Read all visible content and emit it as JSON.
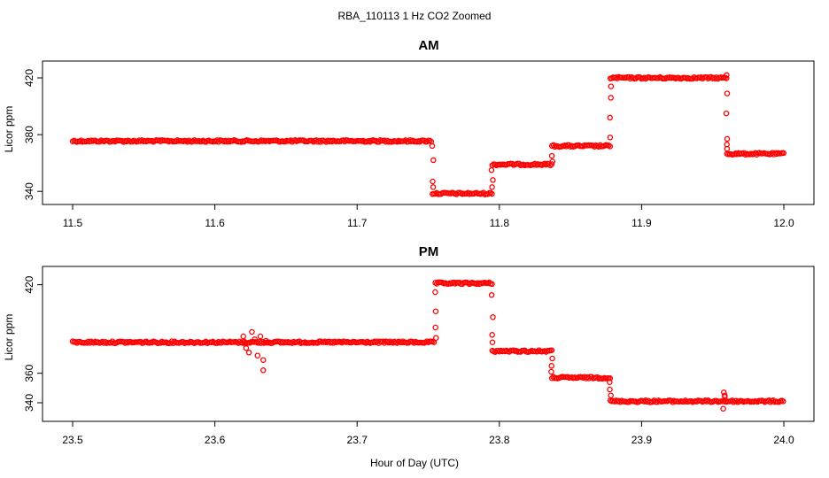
{
  "figure": {
    "title": "RBA_110113  1 Hz CO2 Zoomed",
    "xlabel": "Hour of Day (UTC)",
    "ylabel": "Licor ppm",
    "point_color": "#ff0000"
  },
  "chart_data": [
    {
      "type": "scatter",
      "title": "AM",
      "xlabel": "Hour of Day (UTC)",
      "ylabel": "Licor ppm",
      "xlim": [
        11.5,
        12.0
      ],
      "ylim": [
        337,
        425
      ],
      "xticks": [
        11.5,
        11.6,
        11.7,
        11.8,
        11.9,
        12.0
      ],
      "xtick_labels": [
        "11.5",
        "11.6",
        "11.7",
        "11.8",
        "11.9",
        "12.0"
      ],
      "yticks": [
        340,
        380,
        420
      ],
      "ytick_labels": [
        "340",
        "380",
        "420"
      ],
      "segments": [
        {
          "x_start": 11.5,
          "x_end": 11.753,
          "level": 375.5
        },
        {
          "x_start": 11.753,
          "x_end": 11.795,
          "level": 338.5
        },
        {
          "x_start": 11.795,
          "x_end": 11.837,
          "level": 359
        },
        {
          "x_start": 11.837,
          "x_end": 11.878,
          "level": 372
        },
        {
          "x_start": 11.878,
          "x_end": 11.96,
          "level": 420
        },
        {
          "x_start": 11.96,
          "x_end": 12.0,
          "level": 366.5
        }
      ],
      "transitions": [
        {
          "x": 11.753,
          "values": [
            372,
            362,
            347,
            343
          ]
        },
        {
          "x": 11.795,
          "values": [
            343,
            348,
            355
          ]
        },
        {
          "x": 11.837,
          "values": [
            361,
            365
          ]
        },
        {
          "x": 11.878,
          "values": [
            378,
            392,
            406,
            414
          ]
        },
        {
          "x": 11.96,
          "values": [
            422,
            409,
            395,
            377,
            373,
            370
          ]
        }
      ],
      "outliers": []
    },
    {
      "type": "scatter",
      "title": "PM",
      "xlabel": "Hour of Day (UTC)",
      "ylabel": "Licor ppm",
      "xlim": [
        23.5,
        24.0
      ],
      "ylim": [
        334,
        427
      ],
      "xticks": [
        23.5,
        23.6,
        23.7,
        23.8,
        23.9,
        24.0
      ],
      "xtick_labels": [
        "23.5",
        "23.6",
        "23.7",
        "23.8",
        "23.9",
        "24.0"
      ],
      "yticks": [
        340,
        360,
        420
      ],
      "ytick_labels": [
        "340",
        "360",
        "420"
      ],
      "segments": [
        {
          "x_start": 23.5,
          "x_end": 23.755,
          "level": 381
        },
        {
          "x_start": 23.755,
          "x_end": 23.795,
          "level": 421
        },
        {
          "x_start": 23.795,
          "x_end": 23.837,
          "level": 375
        },
        {
          "x_start": 23.837,
          "x_end": 23.878,
          "level": 357
        },
        {
          "x_start": 23.878,
          "x_end": 24.0,
          "level": 341
        }
      ],
      "transitions": [
        {
          "x": 23.755,
          "values": [
            384,
            391,
            402,
            415
          ]
        },
        {
          "x": 23.795,
          "values": [
            413,
            398,
            386,
            381
          ]
        },
        {
          "x": 23.837,
          "values": [
            370,
            365,
            361
          ]
        },
        {
          "x": 23.878,
          "values": [
            354,
            349,
            345
          ]
        },
        {
          "x": 23.958,
          "values": [
            347,
            345,
            336,
            344
          ]
        }
      ],
      "outliers": [
        {
          "x": 23.62,
          "y": 385
        },
        {
          "x": 23.622,
          "y": 377
        },
        {
          "x": 23.624,
          "y": 374
        },
        {
          "x": 23.626,
          "y": 388
        },
        {
          "x": 23.628,
          "y": 383
        },
        {
          "x": 23.63,
          "y": 372
        },
        {
          "x": 23.632,
          "y": 385
        },
        {
          "x": 23.634,
          "y": 369
        },
        {
          "x": 23.634,
          "y": 362
        },
        {
          "x": 23.621,
          "y": 380
        },
        {
          "x": 23.636,
          "y": 382
        }
      ]
    }
  ]
}
